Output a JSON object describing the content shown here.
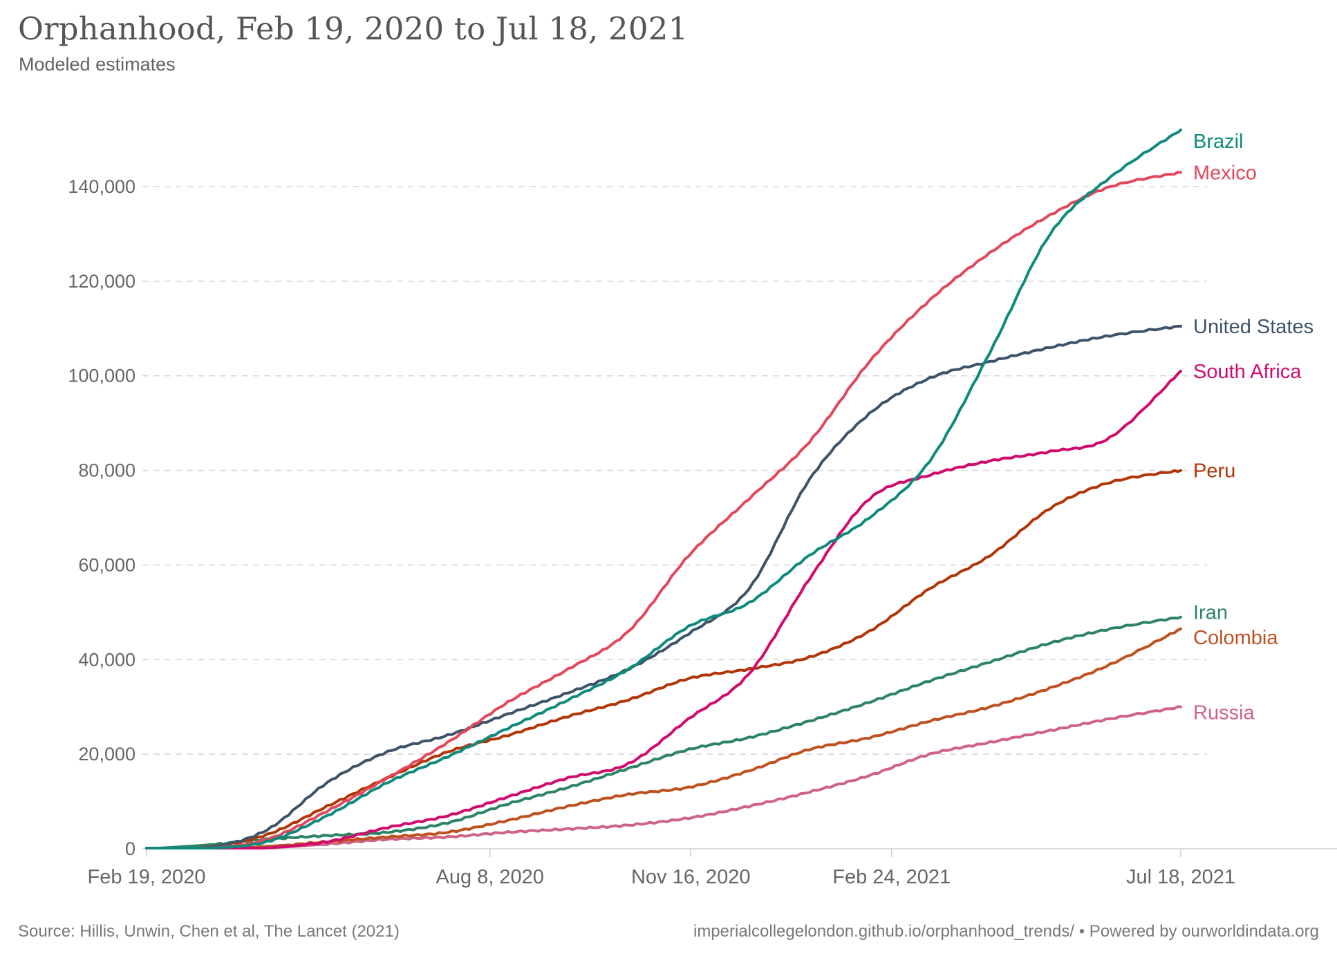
{
  "header": {
    "title": "Orphanhood, Feb 19, 2020 to Jul 18, 2021",
    "subtitle": "Modeled estimates"
  },
  "footer": {
    "source": "Source: Hillis, Unwin, Chen et al, The Lancet (2021)",
    "link": "imperialcollegelondon.github.io/orphanhood_trends/",
    "separator": "•",
    "powered_by": "Powered by ourworldindata.org"
  },
  "colors": {
    "title_text": "#555555",
    "axis_text": "#666666",
    "gridline": "#d8d8d8",
    "axis_line": "#cfcfcf",
    "footer_text": "#787878"
  },
  "chart_data": {
    "type": "line",
    "title": "Orphanhood, Feb 19, 2020 to Jul 18, 2021",
    "subtitle": "Modeled estimates",
    "grid": "horizontal-dashed",
    "legend_position": "right-of-line-ends",
    "ylim": [
      0,
      152000
    ],
    "y_ticks": [
      0,
      20000,
      40000,
      60000,
      80000,
      100000,
      120000,
      140000
    ],
    "x_axis_range_days": [
      0,
      515
    ],
    "x_tick_days": [
      0,
      171,
      271,
      371,
      515
    ],
    "x_tick_labels": [
      "Feb 19, 2020",
      "Aug 8, 2020",
      "Nov 16, 2020",
      "Feb 24, 2021",
      "Jul 18, 2021"
    ],
    "x_sample_days": [
      0,
      30,
      60,
      90,
      120,
      150,
      180,
      210,
      240,
      270,
      300,
      330,
      360,
      390,
      420,
      450,
      480,
      515
    ],
    "x_sample_dates": [
      "Feb 19, 2020",
      "Mar 20, 2020",
      "Apr 19, 2020",
      "May 19, 2020",
      "Jun 18, 2020",
      "Jul 18, 2020",
      "Aug 17, 2020",
      "Sep 16, 2020",
      "Oct 16, 2020",
      "Nov 15, 2020",
      "Dec 15, 2020",
      "Jan 14, 2021",
      "Feb 13, 2021",
      "Mar 15, 2021",
      "Apr 14, 2021",
      "May 14, 2021",
      "Jun 13, 2021",
      "Jul 18, 2021"
    ],
    "series": [
      {
        "name": "Russia",
        "color": "#CE6485",
        "label_dy": 8,
        "values": [
          0,
          0,
          200,
          1000,
          2000,
          2500,
          3500,
          4200,
          5000,
          6500,
          9000,
          12000,
          15500,
          20000,
          22500,
          25000,
          27500,
          30000
        ]
      },
      {
        "name": "Colombia",
        "color": "#BF5121",
        "label_dy": 12,
        "values": [
          0,
          0,
          500,
          1500,
          2500,
          3500,
          6000,
          9000,
          11500,
          13000,
          16500,
          21000,
          23500,
          27000,
          30000,
          34000,
          39000,
          46500
        ]
      },
      {
        "name": "Iran",
        "color": "#2C8465",
        "label_dy": -7,
        "values": [
          0,
          800,
          2000,
          2800,
          3500,
          5500,
          9500,
          13000,
          17000,
          21000,
          23500,
          27000,
          31000,
          35500,
          39500,
          43500,
          46500,
          49000
        ]
      },
      {
        "name": "Peru",
        "color": "#B13507",
        "label_dy": 0,
        "values": [
          0,
          300,
          3000,
          9000,
          15000,
          20500,
          24000,
          28000,
          31500,
          36000,
          38000,
          40500,
          46000,
          55000,
          62000,
          72000,
          77500,
          80000
        ]
      },
      {
        "name": "United States",
        "color": "#3D5368",
        "label_dy": 0,
        "values": [
          0,
          200,
          4000,
          14000,
          20500,
          24000,
          28500,
          33000,
          38000,
          45500,
          55000,
          78000,
          92000,
          99500,
          103000,
          106000,
          108500,
          110500
        ]
      },
      {
        "name": "Mexico",
        "color": "#E2485C",
        "label_dy": 0,
        "values": [
          0,
          100,
          2000,
          8000,
          15000,
          22500,
          31000,
          38000,
          46000,
          62000,
          74000,
          86000,
          103000,
          116000,
          126000,
          134000,
          140000,
          143000
        ]
      },
      {
        "name": "South Africa",
        "color": "#D10A6E",
        "label_dy": 0,
        "values": [
          0,
          0,
          200,
          1500,
          4500,
          7000,
          11000,
          15000,
          18000,
          27500,
          37000,
          57000,
          74000,
          79000,
          82000,
          84000,
          87000,
          101000
        ]
      },
      {
        "name": "Brazil",
        "color": "#0E8A7D",
        "label_dy": 16,
        "values": [
          0,
          100,
          1500,
          7000,
          14000,
          19500,
          25500,
          31500,
          38000,
          47000,
          52000,
          62000,
          70000,
          82000,
          105000,
          130000,
          142000,
          152000
        ]
      }
    ]
  }
}
